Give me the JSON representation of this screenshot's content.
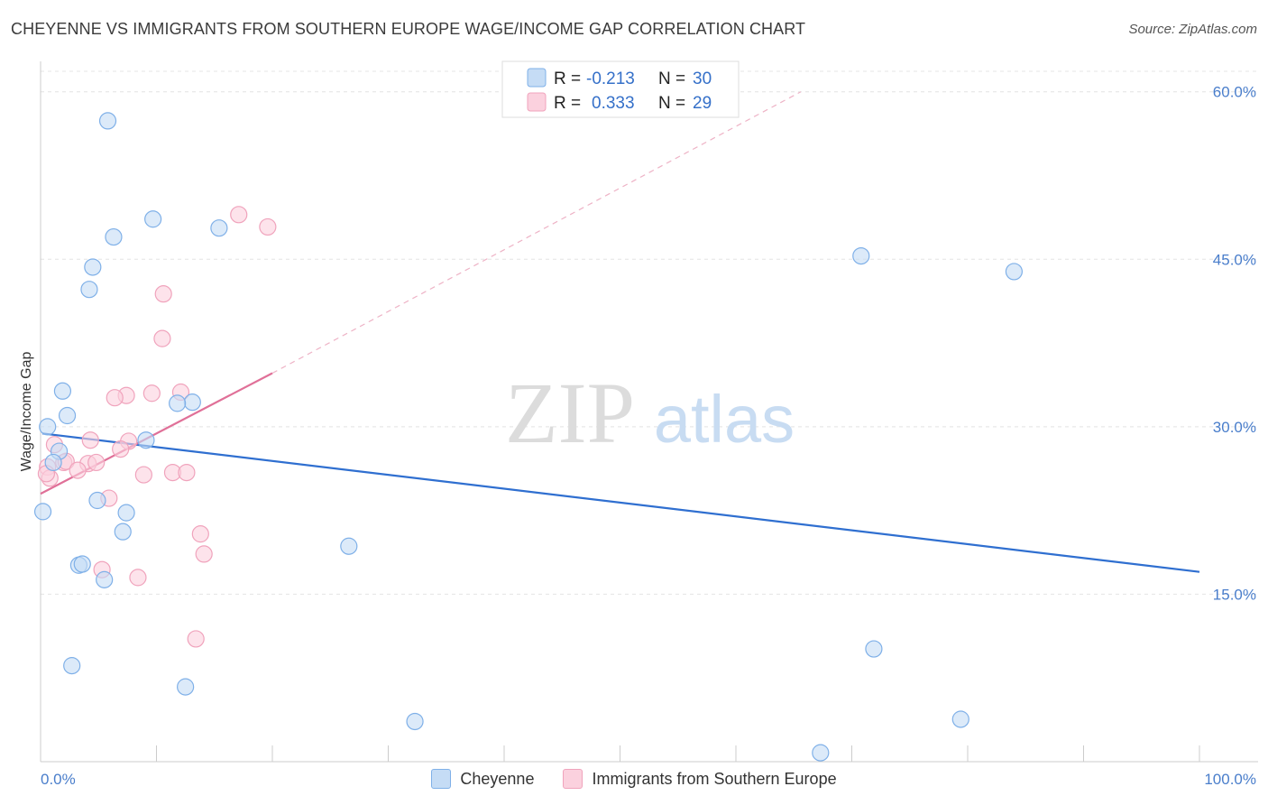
{
  "title": "CHEYENNE VS IMMIGRANTS FROM SOUTHERN EUROPE WAGE/INCOME GAP CORRELATION CHART",
  "source": "Source: ZipAtlas.com",
  "watermark": {
    "zip": "ZIP",
    "atlas": "atlas"
  },
  "chart_data": {
    "type": "scatter",
    "xlabel": "",
    "ylabel": "Wage/Income Gap",
    "xlim": [
      0,
      100
    ],
    "ylim": [
      0,
      62
    ],
    "x_tick_labels": [
      "0.0%",
      "100.0%"
    ],
    "y_ticks": [
      15,
      30,
      45,
      60
    ],
    "y_tick_labels": [
      "15.0%",
      "30.0%",
      "45.0%",
      "60.0%"
    ],
    "legend_stats": [
      {
        "r_label": "R =",
        "r_value": "-0.213",
        "n_label": "N =",
        "n_value": "30"
      },
      {
        "r_label": "R =",
        "r_value": "0.333",
        "n_label": "N =",
        "n_value": "29"
      }
    ],
    "series": [
      {
        "name": "Cheyenne",
        "color": "#7fb0e8",
        "fill": "#c5dcf5",
        "line_color": "#2f6fd0",
        "trend": {
          "x0": 0,
          "y0": 29.4,
          "x1": 100,
          "y1": 17.0
        },
        "points": [
          [
            5.8,
            57.4
          ],
          [
            9.7,
            48.6
          ],
          [
            6.3,
            47.0
          ],
          [
            15.4,
            47.8
          ],
          [
            4.5,
            44.3
          ],
          [
            4.2,
            42.3
          ],
          [
            70.8,
            45.3
          ],
          [
            84.0,
            43.9
          ],
          [
            1.9,
            33.2
          ],
          [
            13.1,
            32.2
          ],
          [
            11.8,
            32.1
          ],
          [
            2.3,
            31.0
          ],
          [
            0.6,
            30.0
          ],
          [
            9.1,
            28.8
          ],
          [
            1.6,
            27.8
          ],
          [
            1.1,
            26.8
          ],
          [
            4.9,
            23.4
          ],
          [
            7.4,
            22.3
          ],
          [
            7.1,
            20.6
          ],
          [
            26.6,
            19.3
          ],
          [
            3.3,
            17.6
          ],
          [
            3.6,
            17.7
          ],
          [
            5.5,
            16.3
          ],
          [
            0.2,
            22.4
          ],
          [
            2.7,
            8.6
          ],
          [
            12.5,
            6.7
          ],
          [
            71.9,
            10.1
          ],
          [
            32.3,
            3.6
          ],
          [
            79.4,
            3.8
          ],
          [
            67.3,
            0.8
          ]
        ]
      },
      {
        "name": "Immigrants from Southern Europe",
        "color": "#f0a3bc",
        "fill": "#fbd1de",
        "line_color": "#e07098",
        "trend": {
          "x0": 0,
          "y0": 24.0,
          "x1": 20,
          "y1": 34.8
        },
        "trend_dashed": {
          "x0": 20,
          "y0": 34.8,
          "x1": 65.6,
          "y1": 60.0
        },
        "points": [
          [
            17.1,
            49.0
          ],
          [
            19.6,
            47.9
          ],
          [
            10.6,
            41.9
          ],
          [
            10.5,
            37.9
          ],
          [
            12.1,
            33.1
          ],
          [
            7.4,
            32.8
          ],
          [
            6.4,
            32.6
          ],
          [
            9.6,
            33.0
          ],
          [
            4.3,
            28.8
          ],
          [
            7.6,
            28.7
          ],
          [
            1.2,
            28.4
          ],
          [
            6.9,
            28.0
          ],
          [
            2.0,
            26.8
          ],
          [
            2.2,
            26.9
          ],
          [
            4.1,
            26.7
          ],
          [
            4.8,
            26.8
          ],
          [
            3.2,
            26.1
          ],
          [
            0.6,
            26.4
          ],
          [
            11.4,
            25.9
          ],
          [
            12.6,
            25.9
          ],
          [
            8.9,
            25.7
          ],
          [
            0.8,
            25.4
          ],
          [
            5.9,
            23.6
          ],
          [
            13.8,
            20.4
          ],
          [
            14.1,
            18.6
          ],
          [
            5.3,
            17.2
          ],
          [
            8.4,
            16.5
          ],
          [
            13.4,
            11.0
          ],
          [
            0.5,
            25.8
          ]
        ]
      }
    ]
  }
}
